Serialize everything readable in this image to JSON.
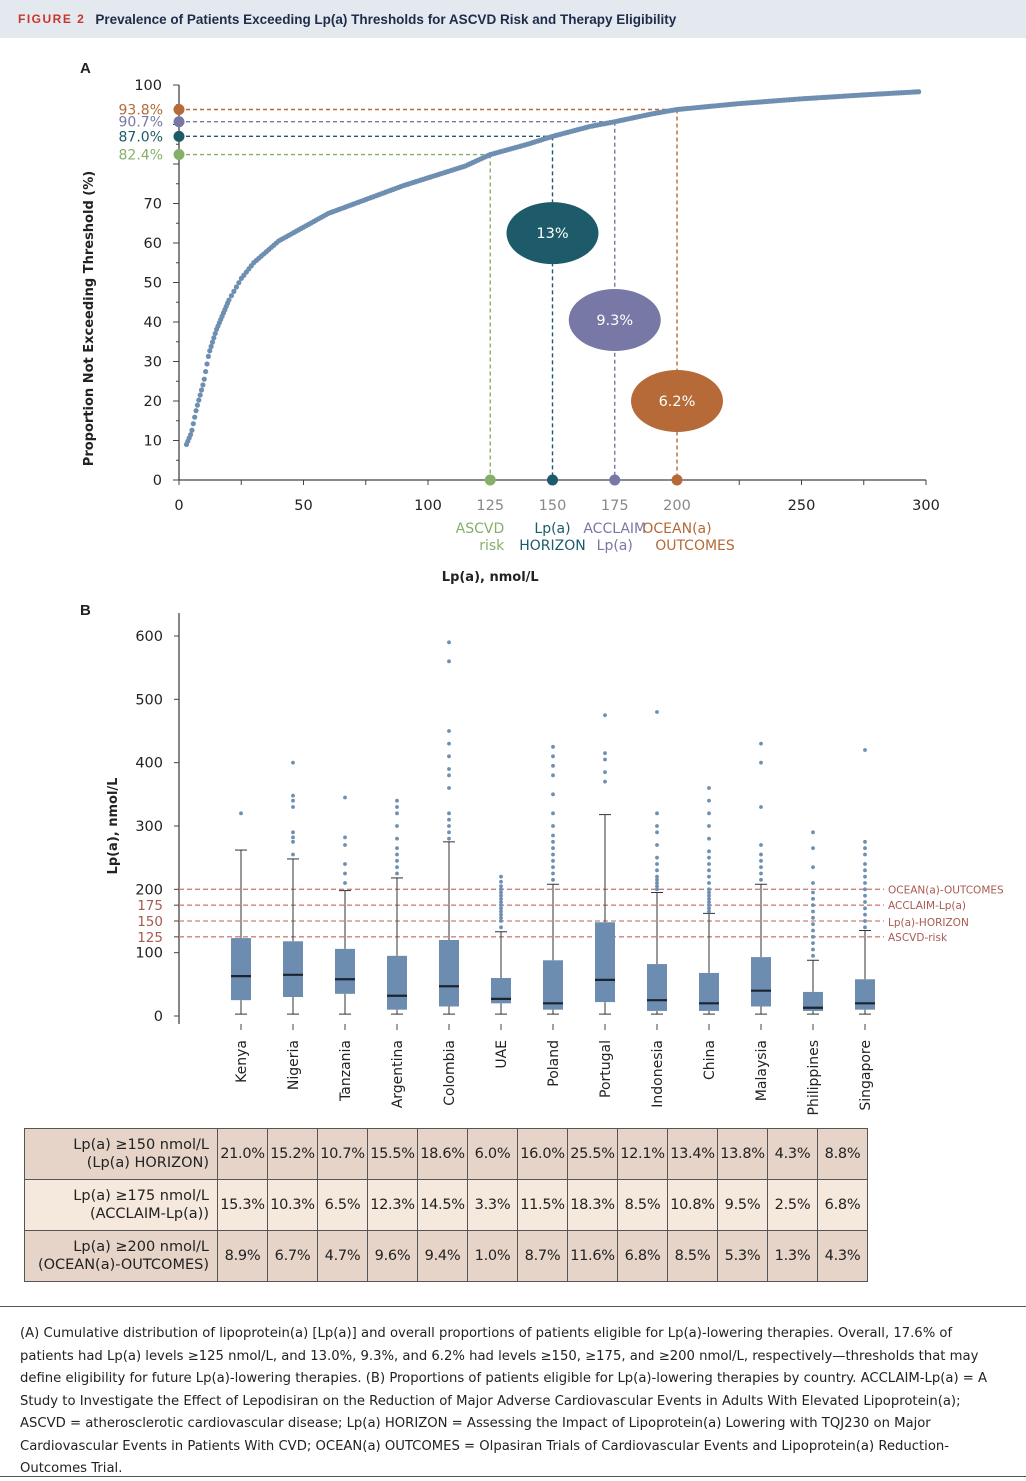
{
  "header": {
    "figure_label": "FIGURE 2",
    "title": "Prevalence of Patients Exceeding Lp(a) Thresholds for ASCVD Risk and Therapy Eligibility"
  },
  "panel_a": {
    "label": "A"
  },
  "panel_b": {
    "label": "B"
  },
  "colors": {
    "dots": "#6e8fb1",
    "ascvd": "#86b06a",
    "horizon": "#1d5a6a",
    "acclaim": "#7778a6",
    "ocean": "#b56a37",
    "box": "#6d8db0"
  },
  "chart_data": [
    {
      "type": "scatter",
      "title": "",
      "xlabel": "Lp(a), nmol/L",
      "ylabel": "Proportion Not Exceeding Threshold (%)",
      "xlim": [
        0,
        300
      ],
      "ylim": [
        0,
        100
      ],
      "xticks": [
        0,
        50,
        100,
        125,
        150,
        175,
        200,
        250,
        300
      ],
      "yticks": [
        0,
        10,
        20,
        30,
        40,
        50,
        60,
        70,
        100
      ],
      "curve_keypoints": {
        "x": [
          3,
          5,
          7,
          10,
          12,
          15,
          20,
          25,
          30,
          40,
          50,
          60,
          75,
          90,
          100,
          115,
          125,
          140,
          150,
          165,
          175,
          190,
          200,
          225,
          250,
          275,
          300
        ],
        "y": [
          9,
          12,
          18,
          25,
          32,
          38,
          45.5,
          51,
          55,
          60.5,
          64,
          67.5,
          71,
          74.5,
          76.5,
          79.5,
          82.4,
          85,
          87,
          89.5,
          90.7,
          92.7,
          93.8,
          95.3,
          96.5,
          97.5,
          98.4
        ]
      },
      "thresholds": [
        {
          "x": 125,
          "y": 82.4,
          "y_label": "82.4%",
          "x_label_1": "ASCVD",
          "x_label_2": "risk",
          "color": "#86b06a"
        },
        {
          "x": 150,
          "y": 87.0,
          "y_label": "87.0%",
          "x_label_1": "Lp(a)",
          "x_label_2": "HORIZON",
          "color": "#1d5a6a"
        },
        {
          "x": 175,
          "y": 90.7,
          "y_label": "90.7%",
          "x_label_1": "ACCLAIM",
          "x_label_2": "Lp(a)",
          "color": "#7778a6"
        },
        {
          "x": 200,
          "y": 93.8,
          "y_label": "93.8%",
          "x_label_1": "OCEAN(a)",
          "x_label_2": "OUTCOMES",
          "color": "#b56a37"
        }
      ],
      "bubbles": [
        {
          "label": "13%",
          "x": 150,
          "y": 62.5,
          "color": "#1d5a6a"
        },
        {
          "label": "9.3%",
          "x": 175,
          "y": 40.5,
          "color": "#7778a6"
        },
        {
          "label": "6.2%",
          "x": 200,
          "y": 20,
          "color": "#b56a37"
        }
      ]
    },
    {
      "type": "box",
      "ylabel": "Lp(a), nmol/L",
      "ylim": [
        0,
        620
      ],
      "yticks": [
        0,
        100,
        125,
        150,
        175,
        200,
        300,
        400,
        500,
        600
      ],
      "categories": [
        "Kenya",
        "Nigeria",
        "Tanzania",
        "Argentina",
        "Colombia",
        "UAE",
        "Poland",
        "Portugal",
        "Indonesia",
        "China",
        "Malaysia",
        "Philippines",
        "Singapore"
      ],
      "boxes": [
        {
          "min": 3,
          "q1": 25,
          "median": 63,
          "q3": 123,
          "max": 262,
          "outliers": [
            320
          ]
        },
        {
          "min": 3,
          "q1": 30,
          "median": 65,
          "q3": 118,
          "max": 248,
          "outliers": [
            255,
            275,
            282,
            290,
            330,
            340,
            348,
            400
          ]
        },
        {
          "min": 3,
          "q1": 35,
          "median": 58,
          "q3": 106,
          "max": 198,
          "outliers": [
            210,
            225,
            240,
            270,
            282,
            345
          ]
        },
        {
          "min": 3,
          "q1": 10,
          "median": 32,
          "q3": 95,
          "max": 218,
          "outliers": [
            225,
            235,
            245,
            255,
            265,
            280,
            300,
            320,
            330,
            340
          ]
        },
        {
          "min": 3,
          "q1": 15,
          "median": 47,
          "q3": 120,
          "max": 275,
          "outliers": [
            280,
            290,
            300,
            310,
            320,
            360,
            380,
            390,
            410,
            430,
            450,
            560,
            590
          ]
        },
        {
          "min": 3,
          "q1": 20,
          "median": 27,
          "q3": 60,
          "max": 133,
          "outliers": [
            140,
            150,
            155,
            160,
            165,
            170,
            175,
            180,
            185,
            190,
            195,
            200,
            205,
            212,
            220
          ]
        },
        {
          "min": 3,
          "q1": 10,
          "median": 20,
          "q3": 88,
          "max": 208,
          "outliers": [
            215,
            225,
            235,
            245,
            255,
            265,
            275,
            285,
            300,
            320,
            350,
            380,
            395,
            410,
            425
          ]
        },
        {
          "min": 3,
          "q1": 22,
          "median": 57,
          "q3": 148,
          "max": 318,
          "outliers": [
            370,
            385,
            405,
            415,
            475
          ]
        },
        {
          "min": 3,
          "q1": 8,
          "median": 25,
          "q3": 82,
          "max": 195,
          "outliers": [
            200,
            205,
            210,
            215,
            220,
            230,
            240,
            250,
            270,
            290,
            300,
            320,
            480
          ]
        },
        {
          "min": 3,
          "q1": 8,
          "median": 20,
          "q3": 68,
          "max": 162,
          "outliers": [
            165,
            170,
            175,
            180,
            185,
            190,
            195,
            200,
            210,
            220,
            230,
            240,
            250,
            260,
            280,
            300,
            320,
            340,
            360
          ]
        },
        {
          "min": 3,
          "q1": 15,
          "median": 40,
          "q3": 93,
          "max": 208,
          "outliers": [
            215,
            225,
            235,
            245,
            255,
            270,
            330,
            400,
            430
          ]
        },
        {
          "min": 3,
          "q1": 8,
          "median": 13,
          "q3": 38,
          "max": 88,
          "outliers": [
            95,
            105,
            115,
            125,
            135,
            145,
            155,
            165,
            175,
            185,
            195,
            210,
            235,
            265,
            290
          ]
        },
        {
          "min": 3,
          "q1": 10,
          "median": 20,
          "q3": 58,
          "max": 135,
          "outliers": [
            140,
            150,
            160,
            170,
            180,
            190,
            200,
            210,
            220,
            230,
            240,
            255,
            265,
            275,
            420
          ]
        }
      ],
      "reference_lines": [
        {
          "y": 200,
          "label": "OCEAN(a)-OUTCOMES"
        },
        {
          "y": 175,
          "label": "ACCLAIM-Lp(a)"
        },
        {
          "y": 150,
          "label": "Lp(a)-HORIZON"
        },
        {
          "y": 125,
          "label": "ASCVD-risk"
        }
      ]
    }
  ],
  "table": {
    "rows": [
      {
        "label_1": "Lp(a) ≥150 nmol/L",
        "label_2": "(Lp(a) HORIZON)",
        "values": [
          "21.0%",
          "15.2%",
          "10.7%",
          "15.5%",
          "18.6%",
          "6.0%",
          "16.0%",
          "25.5%",
          "12.1%",
          "13.4%",
          "13.8%",
          "4.3%",
          "8.8%"
        ]
      },
      {
        "label_1": "Lp(a) ≥175 nmol/L",
        "label_2": "(ACCLAIM-Lp(a))",
        "values": [
          "15.3%",
          "10.3%",
          "6.5%",
          "12.3%",
          "14.5%",
          "3.3%",
          "11.5%",
          "18.3%",
          "8.5%",
          "10.8%",
          "9.5%",
          "2.5%",
          "6.8%"
        ]
      },
      {
        "label_1": "Lp(a) ≥200 nmol/L",
        "label_2": "(OCEAN(a)-OUTCOMES)",
        "values": [
          "8.9%",
          "6.7%",
          "4.7%",
          "9.6%",
          "9.4%",
          "1.0%",
          "8.7%",
          "11.6%",
          "6.8%",
          "8.5%",
          "5.3%",
          "1.3%",
          "4.3%"
        ]
      }
    ]
  },
  "caption": "(A) Cumulative distribution of lipoprotein(a) [Lp(a)] and overall proportions of patients eligible for Lp(a)-lowering therapies. Overall, 17.6% of patients had Lp(a) levels ≥125 nmol/L, and 13.0%, 9.3%, and 6.2% had levels ≥150, ≥175, and ≥200 nmol/L, respectively—thresholds that may define eligibility for future Lp(a)-lowering therapies. (B) Proportions of patients eligible for Lp(a)-lowering therapies by country. ACCLAIM-Lp(a) = A Study to Investigate the Effect of Lepodisiran on the Reduction of Major Adverse Cardiovascular Events in Adults With Elevated Lipoprotein(a); ASCVD = atherosclerotic cardiovascular disease; Lp(a) HORIZON = Assessing the Impact of Lipoprotein(a) Lowering with TQJ230 on Major Cardiovascular Events in Patients With CVD; OCEAN(a) OUTCOMES = Olpasiran Trials of Cardiovascular Events and Lipoprotein(a) Reduction-Outcomes Trial."
}
